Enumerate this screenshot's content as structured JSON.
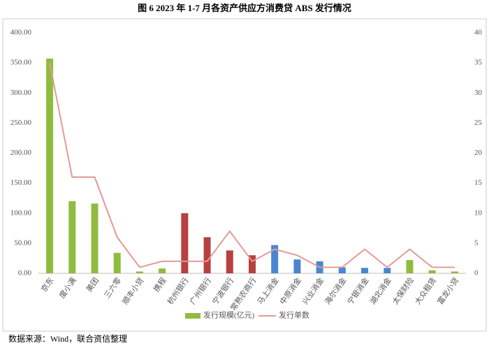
{
  "chart_data": {
    "type": "bar-line",
    "title": "图 6   2023 年 1-7 月各资产供应方消费贷 ABS 发行情况",
    "source": "数据来源：Wind，联合资信整理",
    "categories": [
      "京东",
      "度小满",
      "美团",
      "三六零",
      "顺丰小贷",
      "携程",
      "杭州银行",
      "广州银行",
      "宁波银行",
      "常熟农商行",
      "马上消金",
      "中原消金",
      "兴业消金",
      "海尔消金",
      "宁银消金",
      "湖北消金",
      "太保财险",
      "大众租赁",
      "富龙小贷"
    ],
    "series": [
      {
        "name": "发行规模(亿元)",
        "color": "#8fbc3f",
        "values": [
          357,
          120,
          116,
          34,
          3,
          8,
          100,
          60,
          38,
          30,
          47,
          23,
          20,
          10,
          9,
          9,
          22,
          5,
          3
        ],
        "colors": [
          "#8fbc3f",
          "#8fbc3f",
          "#8fbc3f",
          "#8fbc3f",
          "#8fbc3f",
          "#8fbc3f",
          "#b84040",
          "#b84040",
          "#b84040",
          "#b84040",
          "#4a86cf",
          "#4a86cf",
          "#4a86cf",
          "#4a86cf",
          "#4a86cf",
          "#4a86cf",
          "#8fbc3f",
          "#8fbc3f",
          "#8fbc3f"
        ]
      },
      {
        "name": "发行单数",
        "color": "#e39a94",
        "axis": "y2",
        "values": [
          35,
          16,
          16,
          6,
          1,
          2,
          2,
          2,
          7,
          2,
          4,
          3,
          1,
          1,
          4,
          1,
          4,
          1,
          1
        ]
      }
    ],
    "ylim": [
      0,
      400
    ],
    "yticks": [
      {
        "value": 0,
        "label": "0.00"
      },
      {
        "value": 50,
        "label": "50.00"
      },
      {
        "value": 100,
        "label": "100.00"
      },
      {
        "value": 150,
        "label": "150.00"
      },
      {
        "value": 200,
        "label": "200.00"
      },
      {
        "value": 250,
        "label": "250.00"
      },
      {
        "value": 300,
        "label": "300.00"
      },
      {
        "value": 350,
        "label": "350.00"
      },
      {
        "value": 400,
        "label": "400.00"
      }
    ],
    "y2lim": [
      0,
      40
    ],
    "y2ticks": [
      0,
      5,
      10,
      15,
      20,
      25,
      30,
      35,
      40
    ]
  }
}
